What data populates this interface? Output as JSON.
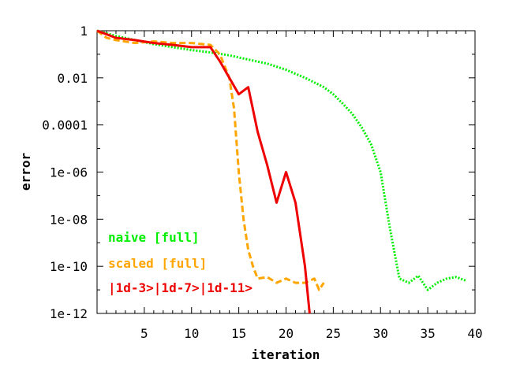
{
  "chart_data": {
    "type": "line",
    "xlabel": "iteration",
    "ylabel": "error",
    "xlim": [
      0,
      40
    ],
    "ylim": [
      1e-12,
      1
    ],
    "yscale": "log",
    "grid": false,
    "legend_position": "bottom-left",
    "xticks": [
      5,
      10,
      15,
      20,
      25,
      30,
      35,
      40
    ],
    "xtick_labels": [
      "5",
      "10",
      "15",
      "20",
      "25",
      "30",
      "35",
      "40"
    ],
    "yticks": [
      1,
      0.01,
      0.0001,
      1e-06,
      1e-08,
      1e-10,
      1e-12
    ],
    "ytick_labels": [
      "1",
      "0.01",
      "0.0001",
      "1e-06",
      "1e-08",
      "1e-10",
      "1e-12"
    ],
    "series": [
      {
        "name": "naive  [full]",
        "color": "#00ee00",
        "dash": "dotted",
        "x": [
          0,
          2,
          4,
          6,
          8,
          10,
          12,
          14,
          16,
          18,
          20,
          22,
          24,
          25,
          26,
          27,
          28,
          29,
          30,
          31,
          32,
          33,
          34,
          35,
          36,
          37,
          38,
          39
        ],
        "y": [
          1,
          0.6,
          0.4,
          0.27,
          0.2,
          0.15,
          0.12,
          0.09,
          0.06,
          0.04,
          0.022,
          0.01,
          0.004,
          0.002,
          0.0008,
          0.0003,
          8e-05,
          1.5e-05,
          1e-06,
          4e-09,
          3e-11,
          2e-11,
          4e-11,
          1e-11,
          2e-11,
          3e-11,
          3.5e-11,
          2.5e-11
        ]
      },
      {
        "name": "scaled [full]",
        "color": "#ffa500",
        "dash": "dashed",
        "x": [
          0,
          1,
          2,
          4,
          6,
          8,
          10,
          12,
          13,
          14,
          14.5,
          15,
          15.5,
          16,
          16.5,
          17,
          18,
          19,
          20,
          21,
          22,
          23,
          23.5,
          24
        ],
        "y": [
          1,
          0.5,
          0.4,
          0.3,
          0.35,
          0.3,
          0.3,
          0.25,
          0.1,
          0.01,
          0.0005,
          1e-06,
          1e-08,
          5e-10,
          1e-10,
          3e-11,
          3.5e-11,
          2e-11,
          3e-11,
          2e-11,
          2e-11,
          3e-11,
          1e-11,
          2e-11
        ]
      },
      {
        "name": "|1d-3>|1d-7>|1d-11>",
        "color": "#ee0000",
        "dash": "solid",
        "x": [
          0,
          2,
          4,
          6,
          8,
          10,
          12,
          13,
          14,
          15,
          16,
          17,
          18,
          19,
          20,
          21,
          22,
          22.5
        ],
        "y": [
          1,
          0.5,
          0.4,
          0.3,
          0.25,
          0.2,
          0.2,
          0.05,
          0.01,
          0.002,
          0.004,
          5e-05,
          2e-06,
          5e-08,
          1e-06,
          5e-08,
          1e-10,
          1e-12
        ]
      }
    ]
  }
}
